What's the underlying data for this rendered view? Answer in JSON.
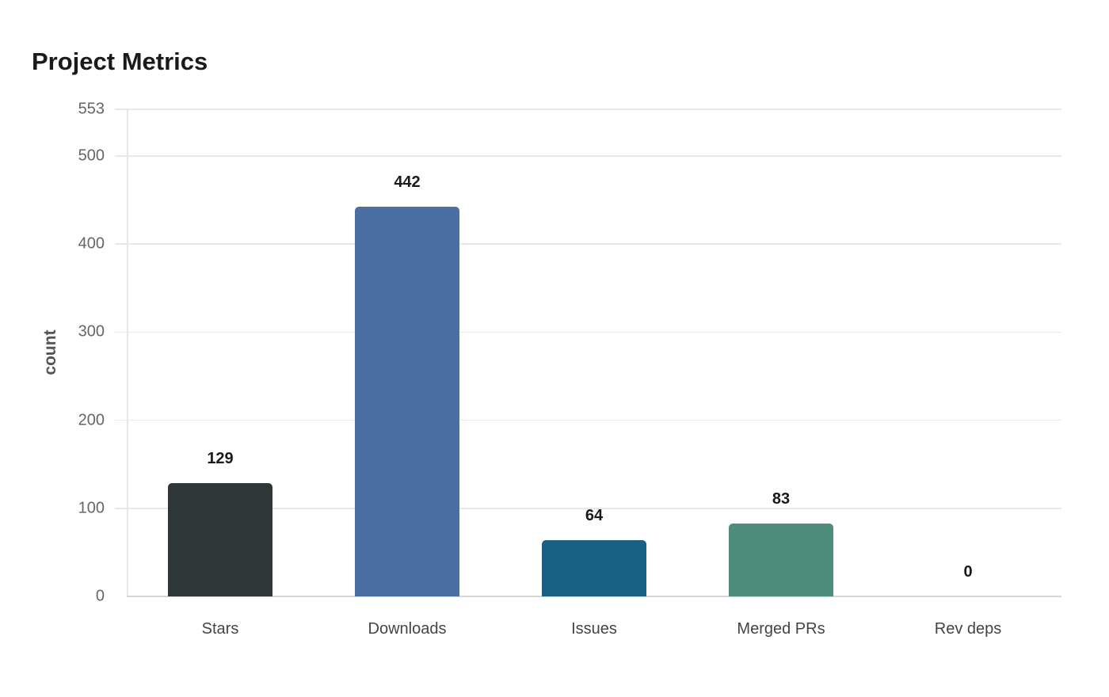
{
  "header": {
    "title": "Project Metrics"
  },
  "axes": {
    "ylabel": "count",
    "yticks": [
      "0",
      "100",
      "200",
      "300",
      "400",
      "500",
      "553"
    ]
  },
  "bars": [
    {
      "label": "Stars",
      "value": "129",
      "color": "#2e3638"
    },
    {
      "label": "Downloads",
      "value": "442",
      "color": "#4a6fa3"
    },
    {
      "label": "Issues",
      "value": "64",
      "color": "#186185"
    },
    {
      "label": "Merged PRs",
      "value": "83",
      "color": "#4e8c7b"
    },
    {
      "label": "Rev deps",
      "value": "0",
      "color": "#9aa0a6"
    }
  ],
  "chart_data": {
    "type": "bar",
    "title": "Project Metrics",
    "xlabel": "",
    "ylabel": "count",
    "categories": [
      "Stars",
      "Downloads",
      "Issues",
      "Merged PRs",
      "Rev deps"
    ],
    "values": [
      129,
      442,
      64,
      83,
      0
    ],
    "colors": [
      "#2e3638",
      "#4a6fa3",
      "#186185",
      "#4e8c7b",
      "#9aa0a6"
    ],
    "ylim": [
      0,
      553
    ],
    "yticks": [
      0,
      100,
      200,
      300,
      400,
      500,
      553
    ],
    "grid": true,
    "legend": null,
    "data_labels": true
  }
}
